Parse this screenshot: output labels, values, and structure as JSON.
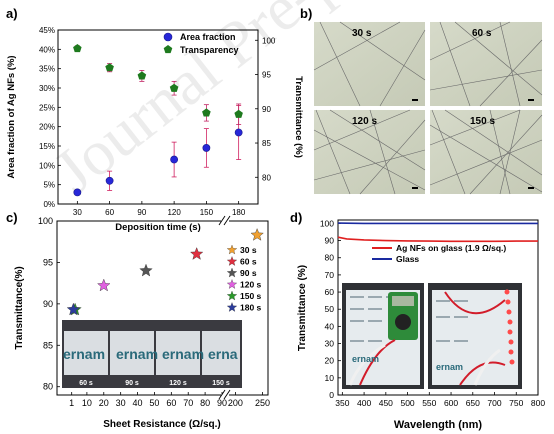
{
  "watermark": "Journal Pre-proof",
  "panels": {
    "a": "a)",
    "b": "b)",
    "c": "c)",
    "d": "d)"
  },
  "chart_data": [
    {
      "panel": "a",
      "type": "scatter",
      "x": [
        30,
        60,
        90,
        120,
        150,
        180
      ],
      "xlabel": "Deposition time (s)",
      "xticks": [
        "30",
        "60",
        "90",
        "120",
        "150",
        "180"
      ],
      "ylabel": "Area fraction of Ag NFs (%)",
      "ylim": [
        0,
        45
      ],
      "yticks": [
        "0%",
        "5%",
        "10%",
        "15%",
        "20%",
        "25%",
        "30%",
        "35%",
        "40%",
        "45%"
      ],
      "y2label": "Transmittance (%)",
      "y2lim": [
        76.1,
        101.5
      ],
      "y2ticks": [
        "80",
        "85",
        "90",
        "95",
        "100"
      ],
      "legend_position": "top-right",
      "series": [
        {
          "name": "Area fraction",
          "color": "#2727d8",
          "marker": "circle",
          "axis": "left",
          "values": [
            3,
            6,
            null,
            11.5,
            14.5,
            18.5
          ],
          "errors": [
            0,
            2.5,
            null,
            4.5,
            5,
            7
          ]
        },
        {
          "name": "Transparency",
          "color": "#1e7a1e",
          "marker": "pentagon",
          "axis": "right",
          "values": [
            98.8,
            96,
            94.8,
            93,
            89.4,
            89.2
          ],
          "errors": [
            0.4,
            0.6,
            0.8,
            1,
            1.2,
            1.5
          ]
        }
      ]
    },
    {
      "panel": "c",
      "type": "scatter",
      "xlabel": "Sheet Resistance (Ω/sq.)",
      "xticks": [
        "1",
        "10",
        "20",
        "30",
        "40",
        "50",
        "60",
        "70",
        "80",
        "90",
        "200",
        "250"
      ],
      "ylabel": "Transmittance(%)",
      "ylim": [
        79,
        100
      ],
      "yticks": [
        "80",
        "85",
        "90",
        "95",
        "100"
      ],
      "legend_position": "right",
      "series": [
        {
          "name": "30 s",
          "color": "#f0a030",
          "x": 240,
          "y": 98.3
        },
        {
          "name": "60 s",
          "color": "#e03040",
          "x": 75,
          "y": 96
        },
        {
          "name": "90 s",
          "color": "#555555",
          "x": 45,
          "y": 94
        },
        {
          "name": "120 s",
          "color": "#e060e0",
          "x": 20,
          "y": 92.2
        },
        {
          "name": "150 s",
          "color": "#2a9a2a",
          "x": 3,
          "y": 89.3
        },
        {
          "name": "180 s",
          "color": "#2c3c9c",
          "x": 2,
          "y": 89.3
        }
      ],
      "inset_labels": [
        "60 s",
        "90 s",
        "120 s",
        "150 s"
      ]
    },
    {
      "panel": "d",
      "type": "line",
      "xlabel": "Wavelength (nm)",
      "xlim": [
        340,
        800
      ],
      "xticks": [
        "350",
        "400",
        "450",
        "500",
        "550",
        "600",
        "650",
        "700",
        "750",
        "800"
      ],
      "ylabel": "Transmittance (%)",
      "ylim": [
        0,
        102
      ],
      "yticks": [
        "0",
        "10",
        "20",
        "30",
        "40",
        "50",
        "60",
        "70",
        "80",
        "90",
        "100"
      ],
      "legend_position": "top-right",
      "series": [
        {
          "name": "Ag NFs on glass (1.9 Ω/sq.)",
          "color": "#e02020",
          "x": [
            340,
            360,
            400,
            450,
            500,
            550,
            600,
            650,
            700,
            750,
            800
          ],
          "values": [
            92,
            91,
            90.4,
            90,
            89.8,
            89.7,
            89.6,
            89.6,
            89.6,
            89.7,
            89.7
          ]
        },
        {
          "name": "Glass",
          "color": "#1a2aa0",
          "x": [
            340,
            400,
            500,
            600,
            700,
            800
          ],
          "values": [
            100.2,
            100,
            100,
            100,
            100,
            100
          ]
        }
      ]
    }
  ],
  "micrographs": [
    {
      "label": "30 s"
    },
    {
      "label": "60 s"
    },
    {
      "label": "120 s"
    },
    {
      "label": "150 s"
    }
  ],
  "colors": {
    "photo_bg": "#3a3a40",
    "card": "#e8edf0"
  }
}
